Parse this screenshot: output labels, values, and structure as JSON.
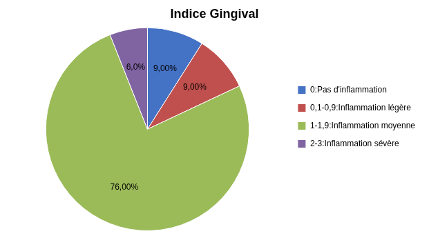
{
  "chart_data": {
    "type": "pie",
    "title": "Indice Gingival",
    "categories": [
      "0:Pas d'inflammation",
      "0,1-0,9:Inflammation légère",
      "1-1,9:Inflammation moyenne",
      "2-3:Inflammation sévère"
    ],
    "values": [
      9.0,
      9.0,
      76.0,
      6.0
    ],
    "value_labels": [
      "9,00%",
      "9,00%",
      "76,00%",
      "6,0%"
    ],
    "colors": [
      "#4472C4",
      "#C0504D",
      "#9BBB59",
      "#8064A2"
    ],
    "data_labels": true,
    "legend": "right"
  }
}
